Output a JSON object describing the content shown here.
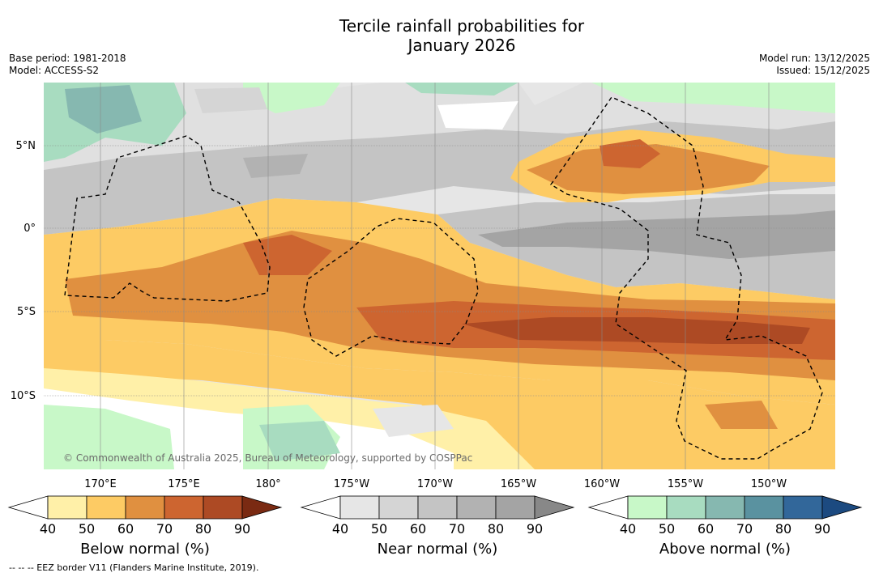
{
  "header": {
    "title_line1": "Tercile rainfall probabilities for",
    "title_line2": "January 2026",
    "base_period": "Base period: 1981-2018",
    "model": "Model: ACCESS-S2",
    "model_run": "Model run: 13/12/2025",
    "issued": "Issued: 15/12/2025"
  },
  "map": {
    "lat_labels": [
      "5°N",
      "0°",
      "5°S",
      "10°S"
    ],
    "lon_labels": [
      "170°E",
      "175°E",
      "180°",
      "175°W",
      "170°W",
      "165°W",
      "160°W",
      "155°W",
      "150°W"
    ],
    "copyright": "© Commonwealth of Australia 2025, Bureau of Meteorology, supported by COSPPac",
    "legend_note": "--  --  -- EEZ border V11 (Flanders Marine Institute, 2019)."
  },
  "colorbars": [
    {
      "label": "Below normal (%)",
      "ticks": [
        "40",
        "50",
        "60",
        "70",
        "80",
        "90"
      ],
      "colors": [
        "#fff0a8",
        "#fdcb64",
        "#e09040",
        "#cd6530",
        "#ad4a24",
        "#7a2a12"
      ]
    },
    {
      "label": "Near normal (%)",
      "ticks": [
        "40",
        "50",
        "60",
        "70",
        "80",
        "90"
      ],
      "colors": [
        "#e6e6e6",
        "#d5d5d5",
        "#c4c4c4",
        "#b2b2b2",
        "#a4a4a4",
        "#888888"
      ]
    },
    {
      "label": "Above normal (%)",
      "ticks": [
        "40",
        "50",
        "60",
        "70",
        "80",
        "90"
      ],
      "colors": [
        "#c8f8c8",
        "#a8dcc0",
        "#86b8b0",
        "#5a92a0",
        "#32679a",
        "#1c4a80"
      ]
    }
  ]
}
